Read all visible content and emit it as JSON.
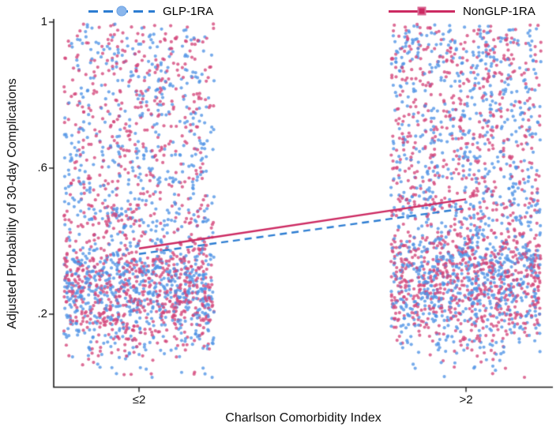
{
  "chart_data": {
    "type": "scatter",
    "title": "",
    "xlabel": "Charlson Comorbidity Index",
    "ylabel": "Adjusted Probability of 30-day Complications",
    "x_tick_labels": [
      "≤2",
      ">2"
    ],
    "y_tick_labels": [
      "1",
      ".6",
      ".2"
    ],
    "y_tick_values": [
      1,
      0.6,
      0.2
    ],
    "ylim": [
      0,
      1.02
    ],
    "grid": false,
    "legend": {
      "position": "top",
      "entries": [
        {
          "label": "GLP-1RA",
          "line_color": "#2d7dd2",
          "line_style": "dashed",
          "marker": "circle",
          "marker_color": "#8ab6ec"
        },
        {
          "label": "NonGLP-1RA",
          "line_color": "#cc2a62",
          "line_style": "solid",
          "marker": "square",
          "marker_color": "#cc2a62"
        }
      ]
    },
    "series": [
      {
        "name": "GLP-1RA",
        "point_color": "#4f93e6",
        "line_color": "#2d7dd2",
        "line_style": "dashed",
        "trend": {
          "categories": [
            "≤2",
            ">2"
          ],
          "values": [
            0.365,
            0.49
          ]
        }
      },
      {
        "name": "NonGLP-1RA",
        "point_color": "#d4457a",
        "line_color": "#cc2a62",
        "line_style": "solid",
        "trend": {
          "categories": [
            "≤2",
            ">2"
          ],
          "values": [
            0.38,
            0.515
          ]
        }
      }
    ],
    "scatter_summary": {
      "description": "Jittered point clouds of individual adjusted probabilities, one vertical band per Charlson Comorbidity Index category, both treatment groups intermixed; dense mass below ~0.45 with sparser spread up to ~1.",
      "clusters": [
        {
          "category": "≤2",
          "n_per_series": 1050,
          "core_weight": 0.63,
          "y_core_mean": 0.27,
          "y_core_sd": 0.095,
          "y_tail_range": [
            0.44,
            0.995
          ]
        },
        {
          "category": ">2",
          "n_per_series": 1150,
          "core_weight": 0.6,
          "y_core_mean": 0.3,
          "y_core_sd": 0.1,
          "y_tail_range": [
            0.46,
            0.995
          ]
        }
      ],
      "point_radius": 2.1,
      "point_opacity": 0.78
    }
  }
}
